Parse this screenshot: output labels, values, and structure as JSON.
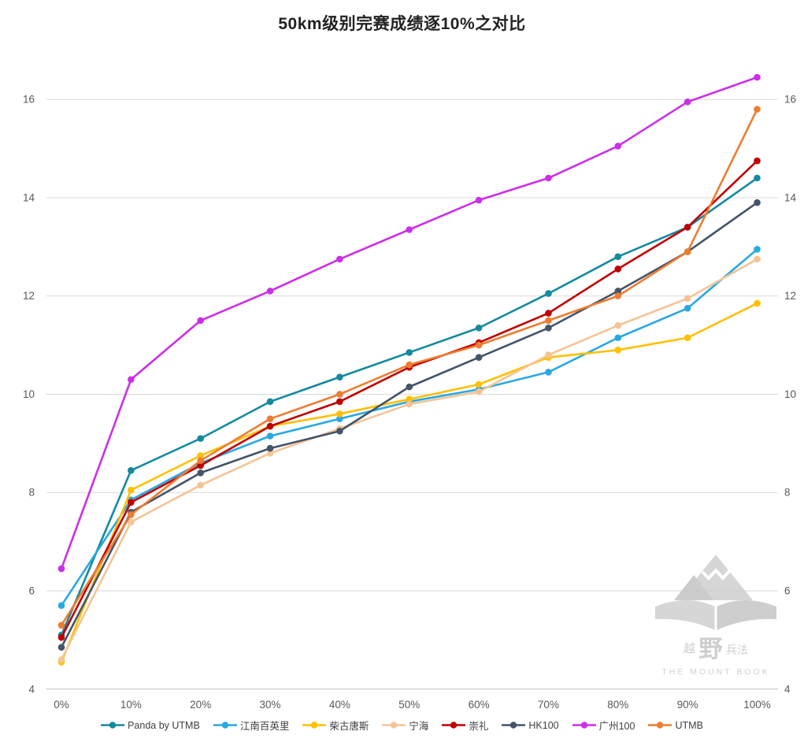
{
  "title": "50km级别完赛成绩逐10%之对比",
  "watermark": {
    "zh_1": "越",
    "zh_2": "野",
    "zh_3": "兵法",
    "en": "THE MOUNT BOOK"
  },
  "axis_colors": {
    "grid": "#d9d9d9",
    "axis_line": "#bfbfbf",
    "tick_text": "#595959"
  },
  "chart_data": {
    "type": "line",
    "title": "50km级别完赛成绩逐10%之对比",
    "xlabel": "",
    "ylabel": "",
    "x_tick_labels": [
      "0%",
      "10%",
      "20%",
      "30%",
      "40%",
      "50%",
      "60%",
      "70%",
      "80%",
      "90%",
      "100%"
    ],
    "y_ticks": [
      4,
      6,
      8,
      10,
      12,
      14,
      16
    ],
    "ylim": [
      4,
      17
    ],
    "grid": true,
    "legend_position": "bottom",
    "series": [
      {
        "name": "Panda by UTMB",
        "color": "#148a9e",
        "values": [
          5.1,
          8.45,
          9.1,
          9.85,
          10.35,
          10.85,
          11.35,
          12.05,
          12.8,
          13.4,
          14.4
        ]
      },
      {
        "name": "江南百英里",
        "color": "#29a9e1",
        "values": [
          5.7,
          7.85,
          8.6,
          9.15,
          9.5,
          9.85,
          10.1,
          10.45,
          11.15,
          11.75,
          12.95
        ]
      },
      {
        "name": "柴古唐斯",
        "color": "#ffc000",
        "values": [
          4.55,
          8.05,
          8.75,
          9.35,
          9.6,
          9.9,
          10.2,
          10.75,
          10.9,
          11.15,
          11.85
        ]
      },
      {
        "name": "宁海",
        "color": "#f5c496",
        "values": [
          4.6,
          7.4,
          8.15,
          8.8,
          9.3,
          9.8,
          10.05,
          10.8,
          11.4,
          11.95,
          12.75
        ]
      },
      {
        "name": "崇礼",
        "color": "#c00000",
        "values": [
          5.05,
          7.8,
          8.55,
          9.35,
          9.85,
          10.55,
          11.05,
          11.65,
          12.55,
          13.4,
          14.75
        ]
      },
      {
        "name": "HK100",
        "color": "#44546a",
        "values": [
          4.85,
          7.6,
          8.4,
          8.9,
          9.25,
          10.15,
          10.75,
          11.35,
          12.1,
          12.9,
          13.9
        ]
      },
      {
        "name": "广州100",
        "color": "#cc2fe8",
        "values": [
          6.45,
          10.3,
          11.5,
          12.1,
          12.75,
          13.35,
          13.95,
          14.4,
          15.05,
          15.95,
          16.45
        ]
      },
      {
        "name": "UTMB",
        "color": "#ed7d31",
        "values": [
          5.3,
          7.55,
          8.65,
          9.5,
          10.0,
          10.6,
          11.0,
          11.5,
          12.0,
          12.9,
          15.8
        ]
      }
    ]
  }
}
